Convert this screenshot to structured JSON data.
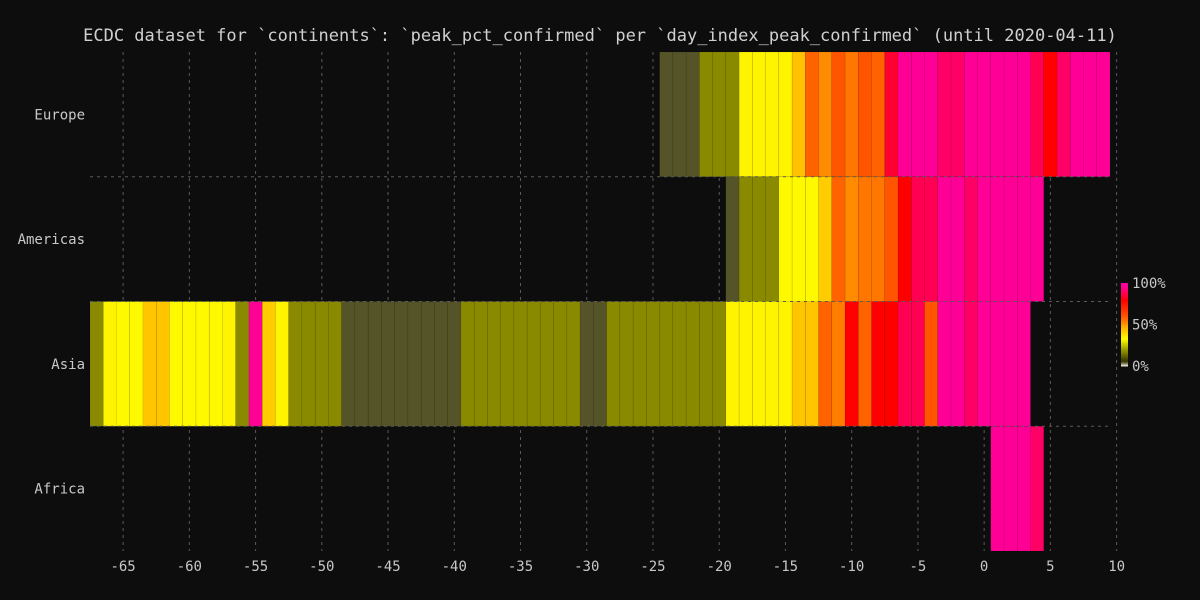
{
  "chart_data": {
    "type": "heatmap",
    "title": "ECDC dataset for `continents`: `peak_pct_confirmed` per `day_index_peak_confirmed` (until 2020-04-11)",
    "xlabel": "",
    "ylabel": "",
    "xlim": [
      -67.5,
      9.5
    ],
    "x_ticks": [
      -65,
      -60,
      -55,
      -50,
      -45,
      -40,
      -35,
      -30,
      -25,
      -20,
      -15,
      -10,
      -5,
      0,
      5,
      10
    ],
    "x_tick_labels": [
      "-65",
      "-60",
      "-55",
      "-50",
      "-45",
      "-40",
      "-35",
      "-30",
      "-25",
      "-20",
      "-15",
      "-10",
      "-5",
      "0",
      "5",
      "10"
    ],
    "grid": true,
    "categories": [
      "Europe",
      "Americas",
      "Asia",
      "Africa"
    ],
    "colorbar": {
      "ticks": [
        0,
        50,
        100
      ],
      "tick_labels": [
        "0%",
        "50%",
        "100%"
      ],
      "placement": "right",
      "stops": [
        {
          "v": 0,
          "color": "#fffaf0"
        },
        {
          "v": 6,
          "color": "#333300"
        },
        {
          "v": 20,
          "color": "#999900"
        },
        {
          "v": 33,
          "color": "#ffff00"
        },
        {
          "v": 45,
          "color": "#ffbb00"
        },
        {
          "v": 60,
          "color": "#ff5500"
        },
        {
          "v": 80,
          "color": "#ff0000"
        },
        {
          "v": 90,
          "color": "#ff0066"
        },
        {
          "v": 100,
          "color": "#ff00aa"
        }
      ]
    },
    "rows": [
      {
        "name": "Europe",
        "segments": [
          {
            "start": -24,
            "end": -21,
            "value": 5
          },
          {
            "start": -21,
            "end": -18,
            "value": 18
          },
          {
            "start": -18,
            "end": -14,
            "value": 35
          },
          {
            "start": -14,
            "end": -13,
            "value": 44
          },
          {
            "start": -13,
            "end": -12,
            "value": 58
          },
          {
            "start": -12,
            "end": -11,
            "value": 52
          },
          {
            "start": -11,
            "end": -10,
            "value": 60
          },
          {
            "start": -10,
            "end": -9,
            "value": 55
          },
          {
            "start": -9,
            "end": -8,
            "value": 60
          },
          {
            "start": -8,
            "end": -7,
            "value": 58
          },
          {
            "start": -7,
            "end": -6,
            "value": 85
          },
          {
            "start": -6,
            "end": -3,
            "value": 97
          },
          {
            "start": -3,
            "end": -1,
            "value": 90
          },
          {
            "start": -1,
            "end": 4,
            "value": 97
          },
          {
            "start": 4,
            "end": 5,
            "value": 88
          },
          {
            "start": 5,
            "end": 6,
            "value": 80
          },
          {
            "start": 6,
            "end": 7,
            "value": 90
          },
          {
            "start": 7,
            "end": 10,
            "value": 97
          }
        ]
      },
      {
        "name": "Americas",
        "segments": [
          {
            "start": -19,
            "end": -18,
            "value": 5
          },
          {
            "start": -18,
            "end": -15,
            "value": 18
          },
          {
            "start": -15,
            "end": -12,
            "value": 34
          },
          {
            "start": -12,
            "end": -11,
            "value": 42
          },
          {
            "start": -11,
            "end": -10,
            "value": 58
          },
          {
            "start": -10,
            "end": -9,
            "value": 52
          },
          {
            "start": -9,
            "end": -8,
            "value": 55
          },
          {
            "start": -8,
            "end": -7,
            "value": 55
          },
          {
            "start": -7,
            "end": -6,
            "value": 60
          },
          {
            "start": -6,
            "end": -5,
            "value": 80
          },
          {
            "start": -5,
            "end": -3,
            "value": 88
          },
          {
            "start": -3,
            "end": -1,
            "value": 97
          },
          {
            "start": -1,
            "end": 0,
            "value": 90
          },
          {
            "start": 0,
            "end": 5,
            "value": 97
          }
        ]
      },
      {
        "name": "Asia",
        "segments": [
          {
            "start": -67,
            "end": -66,
            "value": 18
          },
          {
            "start": -66,
            "end": -65,
            "value": 35
          },
          {
            "start": -65,
            "end": -63,
            "value": 34
          },
          {
            "start": -63,
            "end": -61,
            "value": 43
          },
          {
            "start": -61,
            "end": -57,
            "value": 34
          },
          {
            "start": -57,
            "end": -56,
            "value": 35
          },
          {
            "start": -56,
            "end": -55,
            "value": 18
          },
          {
            "start": -55,
            "end": -54,
            "value": 97
          },
          {
            "start": -54,
            "end": -53,
            "value": 42
          },
          {
            "start": -53,
            "end": -52,
            "value": 35
          },
          {
            "start": -52,
            "end": -48,
            "value": 18
          },
          {
            "start": -48,
            "end": -39,
            "value": 5
          },
          {
            "start": -39,
            "end": -30,
            "value": 18
          },
          {
            "start": -30,
            "end": -28,
            "value": 5
          },
          {
            "start": -28,
            "end": -19,
            "value": 18
          },
          {
            "start": -19,
            "end": -14,
            "value": 35
          },
          {
            "start": -14,
            "end": -12,
            "value": 43
          },
          {
            "start": -12,
            "end": -11,
            "value": 58
          },
          {
            "start": -11,
            "end": -10,
            "value": 54
          },
          {
            "start": -10,
            "end": -9,
            "value": 80
          },
          {
            "start": -9,
            "end": -8,
            "value": 58
          },
          {
            "start": -8,
            "end": -6,
            "value": 80
          },
          {
            "start": -6,
            "end": -4,
            "value": 88
          },
          {
            "start": -4,
            "end": -3,
            "value": 60
          },
          {
            "start": -3,
            "end": -1,
            "value": 97
          },
          {
            "start": -1,
            "end": 0,
            "value": 90
          },
          {
            "start": 0,
            "end": 4,
            "value": 97
          }
        ]
      },
      {
        "name": "Africa",
        "segments": [
          {
            "start": 1,
            "end": 4,
            "value": 97
          },
          {
            "start": 4,
            "end": 5,
            "value": 90
          }
        ]
      }
    ]
  }
}
